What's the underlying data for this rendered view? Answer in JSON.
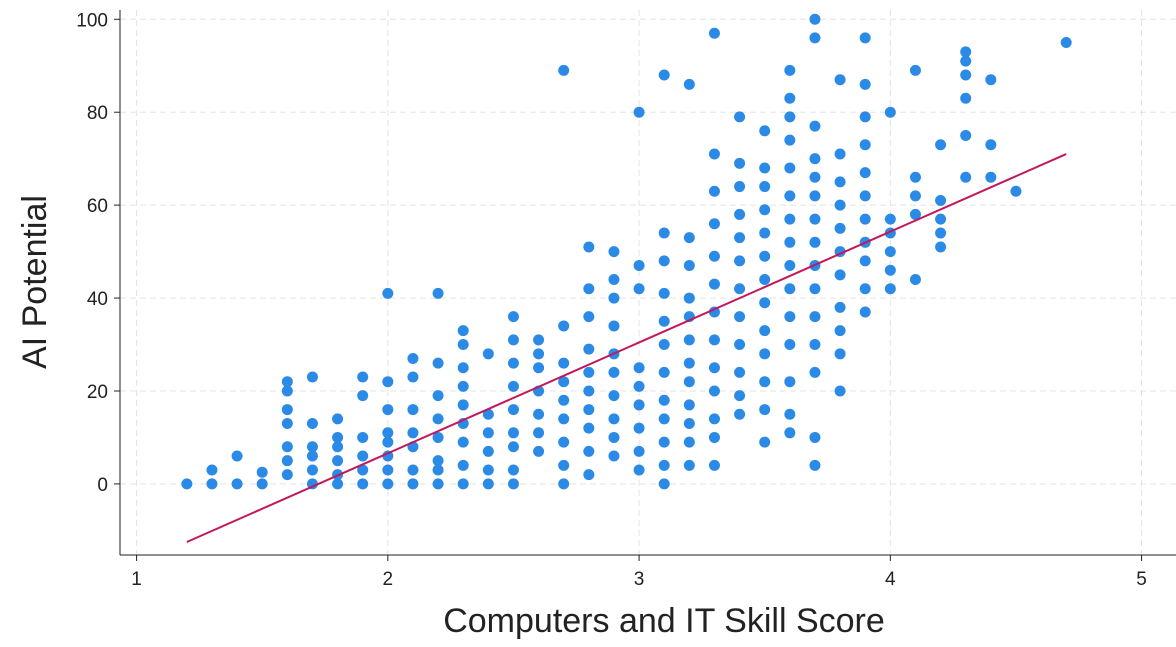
{
  "chart_data": {
    "type": "scatter",
    "x_label": "Computers and IT Skill Score",
    "y_label": "AI Potential",
    "color": "#2b8ae6",
    "grid": true,
    "xlim": [
      0.934,
      5.137
    ],
    "ylim": [
      -15.3,
      102
    ],
    "xticks": [
      1,
      2,
      3,
      4,
      5
    ],
    "yticks": [
      0,
      20,
      40,
      60,
      80,
      100
    ],
    "x": [
      1.2,
      1.3,
      1.3,
      1.4,
      1.4,
      1.5,
      1.5,
      1.6,
      1.6,
      1.6,
      1.6,
      1.6,
      1.6,
      1.6,
      1.7,
      1.7,
      1.7,
      1.7,
      1.7,
      1.7,
      1.8,
      1.8,
      1.8,
      1.8,
      1.8,
      1.8,
      1.9,
      1.9,
      1.9,
      1.9,
      1.9,
      1.9,
      2.0,
      2.0,
      2.0,
      2.0,
      2.0,
      2.0,
      2.0,
      2.0,
      2.1,
      2.1,
      2.1,
      2.1,
      2.1,
      2.1,
      2.1,
      2.2,
      2.2,
      2.2,
      2.2,
      2.2,
      2.2,
      2.2,
      2.2,
      2.3,
      2.3,
      2.3,
      2.3,
      2.3,
      2.3,
      2.3,
      2.3,
      2.3,
      2.4,
      2.4,
      2.4,
      2.4,
      2.4,
      2.4,
      2.5,
      2.5,
      2.5,
      2.5,
      2.5,
      2.5,
      2.5,
      2.5,
      2.5,
      2.6,
      2.6,
      2.6,
      2.6,
      2.6,
      2.6,
      2.6,
      2.7,
      2.7,
      2.7,
      2.7,
      2.7,
      2.7,
      2.7,
      2.7,
      2.7,
      2.8,
      2.8,
      2.8,
      2.8,
      2.8,
      2.8,
      2.8,
      2.8,
      2.8,
      2.8,
      2.9,
      2.9,
      2.9,
      2.9,
      2.9,
      2.9,
      2.9,
      2.9,
      2.9,
      2.9,
      3.0,
      3.0,
      3.0,
      3.0,
      3.0,
      3.0,
      3.0,
      3.0,
      3.0,
      3.1,
      3.1,
      3.1,
      3.1,
      3.1,
      3.1,
      3.1,
      3.1,
      3.1,
      3.1,
      3.1,
      3.1,
      3.2,
      3.2,
      3.2,
      3.2,
      3.2,
      3.2,
      3.2,
      3.2,
      3.2,
      3.2,
      3.2,
      3.2,
      3.3,
      3.3,
      3.3,
      3.3,
      3.3,
      3.3,
      3.3,
      3.3,
      3.3,
      3.3,
      3.3,
      3.3,
      3.3,
      3.4,
      3.4,
      3.4,
      3.4,
      3.4,
      3.4,
      3.4,
      3.4,
      3.4,
      3.4,
      3.4,
      3.4,
      3.5,
      3.5,
      3.5,
      3.5,
      3.5,
      3.5,
      3.5,
      3.5,
      3.5,
      3.5,
      3.5,
      3.5,
      3.5,
      3.6,
      3.6,
      3.6,
      3.6,
      3.6,
      3.6,
      3.6,
      3.6,
      3.6,
      3.6,
      3.6,
      3.6,
      3.6,
      3.6,
      3.6,
      3.7,
      3.7,
      3.7,
      3.7,
      3.7,
      3.7,
      3.7,
      3.7,
      3.7,
      3.7,
      3.7,
      3.7,
      3.7,
      3.7,
      3.7,
      3.8,
      3.8,
      3.8,
      3.8,
      3.8,
      3.8,
      3.8,
      3.8,
      3.8,
      3.8,
      3.8,
      3.9,
      3.9,
      3.9,
      3.9,
      3.9,
      3.9,
      3.9,
      3.9,
      3.9,
      3.9,
      3.9,
      4.0,
      4.0,
      4.0,
      4.0,
      4.0,
      4.0,
      4.1,
      4.1,
      4.1,
      4.1,
      4.1,
      4.2,
      4.2,
      4.2,
      4.2,
      4.2,
      4.3,
      4.3,
      4.3,
      4.3,
      4.3,
      4.3,
      4.4,
      4.4,
      4.4,
      4.5,
      4.7
    ],
    "values": [
      0,
      0,
      3,
      0,
      6,
      0,
      2.5,
      2,
      5,
      8,
      13,
      16,
      20,
      22,
      0,
      3,
      6,
      8,
      13,
      23,
      0,
      2,
      5,
      8,
      10,
      14,
      0,
      3,
      6,
      10,
      19,
      23,
      0,
      3,
      6,
      9,
      11,
      16,
      22,
      41,
      0,
      3,
      8,
      11,
      16,
      23,
      27,
      0,
      3,
      5,
      10,
      14,
      19,
      26,
      41,
      0,
      4,
      9,
      13,
      17,
      21,
      25,
      30,
      33,
      0,
      3,
      7,
      11,
      15,
      28,
      0,
      3,
      8,
      11,
      16,
      21,
      26,
      31,
      36,
      7,
      11,
      15,
      20,
      25,
      28,
      31,
      0,
      4,
      9,
      14,
      18,
      22,
      26,
      34,
      89,
      2,
      7,
      12,
      16,
      20,
      24,
      29,
      36,
      42,
      51,
      6,
      10,
      14,
      19,
      24,
      28,
      34,
      40,
      44,
      50,
      3,
      7,
      12,
      17,
      21,
      25,
      42,
      47,
      80,
      0,
      4,
      9,
      14,
      18,
      24,
      30,
      35,
      41,
      48,
      54,
      88,
      4,
      9,
      13,
      17,
      22,
      26,
      31,
      36,
      40,
      47,
      53,
      86,
      4,
      10,
      14,
      20,
      25,
      31,
      37,
      43,
      49,
      56,
      63,
      71,
      97,
      15,
      19,
      24,
      30,
      36,
      42,
      48,
      53,
      58,
      64,
      69,
      79,
      9,
      16,
      22,
      28,
      33,
      39,
      44,
      49,
      54,
      59,
      64,
      68,
      76,
      11,
      15,
      22,
      30,
      36,
      42,
      47,
      52,
      57,
      62,
      68,
      74,
      79,
      83,
      89,
      4,
      10,
      24,
      30,
      36,
      42,
      47,
      52,
      57,
      62,
      66,
      70,
      77,
      96,
      100,
      20,
      28,
      33,
      38,
      45,
      50,
      55,
      60,
      65,
      71,
      87,
      37,
      42,
      48,
      52,
      57,
      62,
      67,
      73,
      79,
      86,
      96,
      42,
      46,
      50,
      54,
      57,
      80,
      44,
      58,
      62,
      66,
      89,
      51,
      54,
      57,
      61,
      73,
      66,
      75,
      83,
      88,
      91,
      93,
      66,
      73,
      87,
      63,
      95
    ],
    "fit_line": {
      "x": [
        1.2,
        4.7
      ],
      "y": [
        -12.5,
        71
      ],
      "color": "#c2185b"
    }
  }
}
